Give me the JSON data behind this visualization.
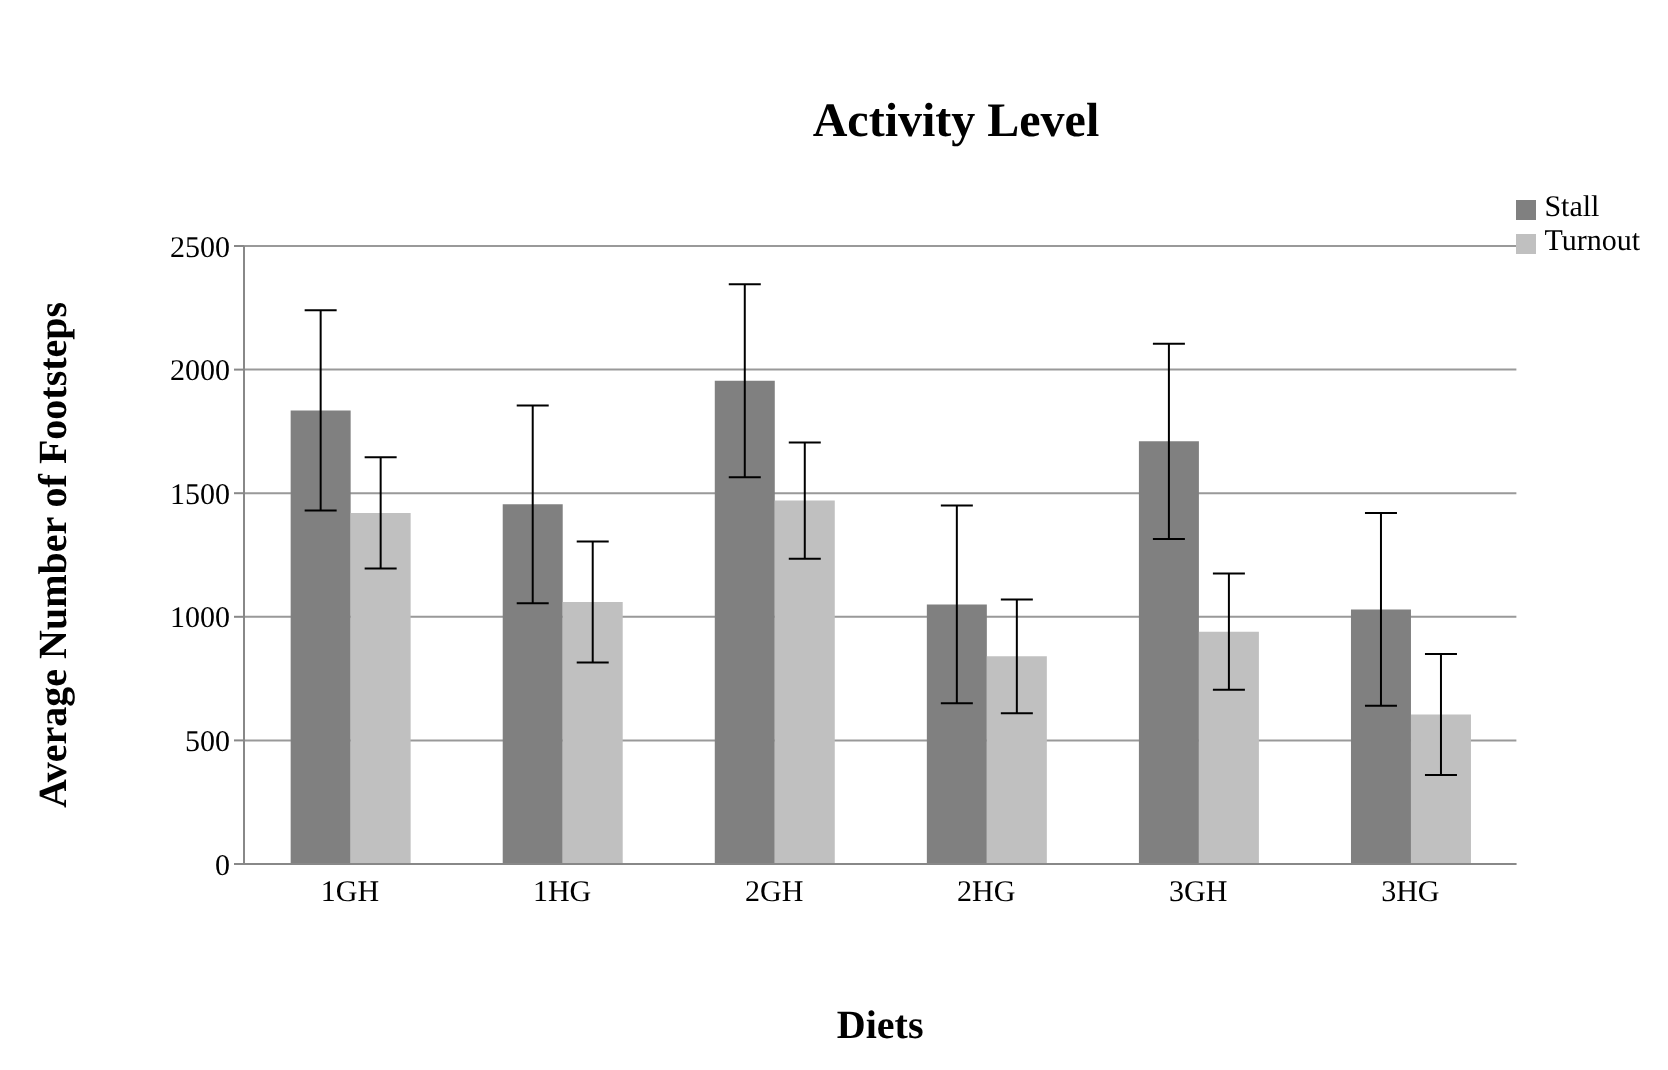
{
  "chart_data": {
    "type": "bar",
    "title": "Activity Level",
    "xlabel": "Diets",
    "ylabel": "Average Number of Footsteps",
    "categories": [
      "1GH",
      "1HG",
      "2GH",
      "2HG",
      "3GH",
      "3HG"
    ],
    "series": [
      {
        "name": "Stall",
        "color": "#808080",
        "values": [
          1835,
          1455,
          1955,
          1050,
          1710,
          1030
        ],
        "errors": [
          405,
          400,
          390,
          400,
          395,
          390
        ]
      },
      {
        "name": "Turnout",
        "color": "#c0c0c0",
        "values": [
          1420,
          1060,
          1470,
          840,
          940,
          605
        ],
        "errors": [
          225,
          245,
          235,
          230,
          235,
          245
        ]
      }
    ],
    "ylim": [
      0,
      2500
    ],
    "yticks": [
      0,
      500,
      1000,
      1500,
      2000,
      2500
    ],
    "grid": "y",
    "legend": "top right"
  }
}
